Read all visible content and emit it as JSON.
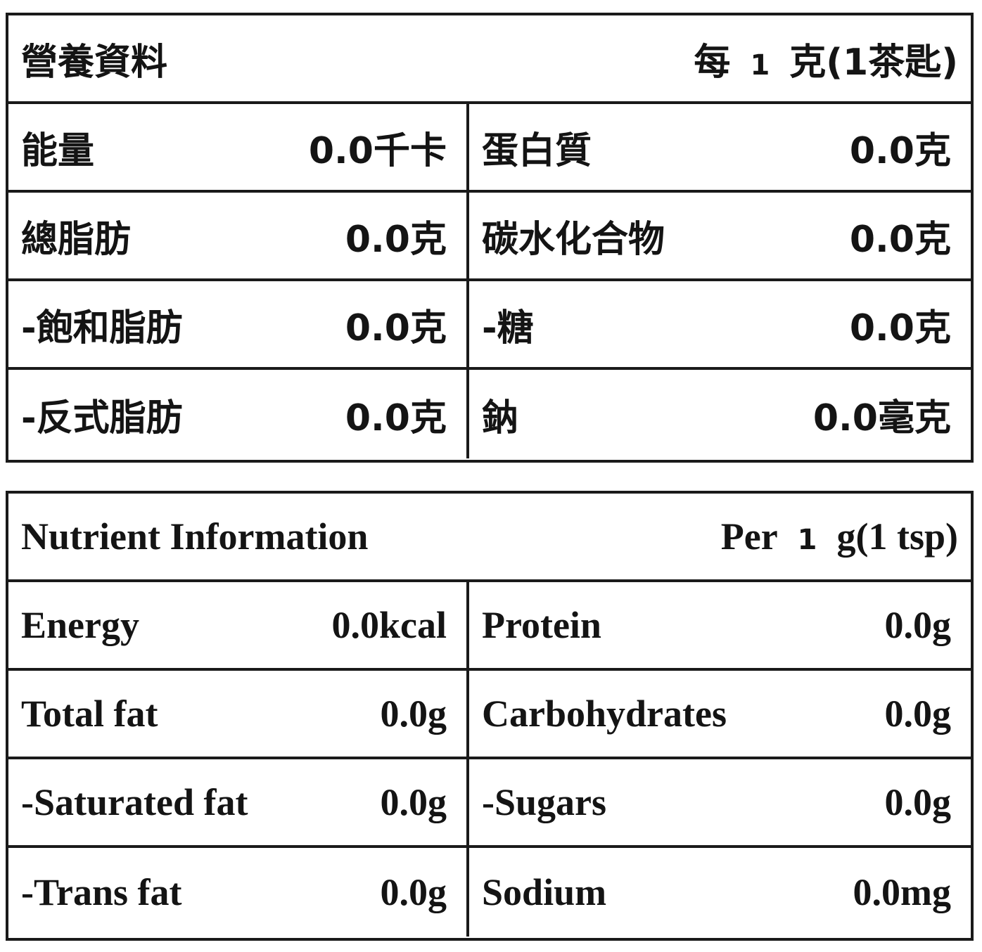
{
  "chinese": {
    "title": "營養資料",
    "per_prefix": "每",
    "per_amount": "1",
    "per_unit": "克(1茶匙)",
    "rows": [
      {
        "left_label": "能量",
        "left_value": "0.0千卡",
        "right_label": "蛋白質",
        "right_value": "0.0克"
      },
      {
        "left_label": "總脂肪",
        "left_value": "0.0克",
        "right_label": "碳水化合物",
        "right_value": "0.0克"
      },
      {
        "left_label": "-飽和脂肪",
        "left_value": "0.0克",
        "right_label": "-糖",
        "right_value": "0.0克"
      },
      {
        "left_label": "-反式脂肪",
        "left_value": "0.0克",
        "right_label": "鈉",
        "right_value": "0.0毫克"
      }
    ]
  },
  "english": {
    "title": "Nutrient Information",
    "per_prefix": "Per",
    "per_amount": "1",
    "per_unit": "g(1 tsp)",
    "rows": [
      {
        "left_label": "Energy",
        "left_value": "0.0kcal",
        "right_label": "Protein",
        "right_value": "0.0g"
      },
      {
        "left_label": "Total fat",
        "left_value": "0.0g",
        "right_label": "Carbohydrates",
        "right_value": "0.0g"
      },
      {
        "left_label": "-Saturated fat",
        "left_value": "0.0g",
        "right_label": "-Sugars",
        "right_value": "0.0g"
      },
      {
        "left_label": "-Trans fat",
        "left_value": "0.0g",
        "right_label": "Sodium",
        "right_value": "0.0mg"
      }
    ]
  }
}
